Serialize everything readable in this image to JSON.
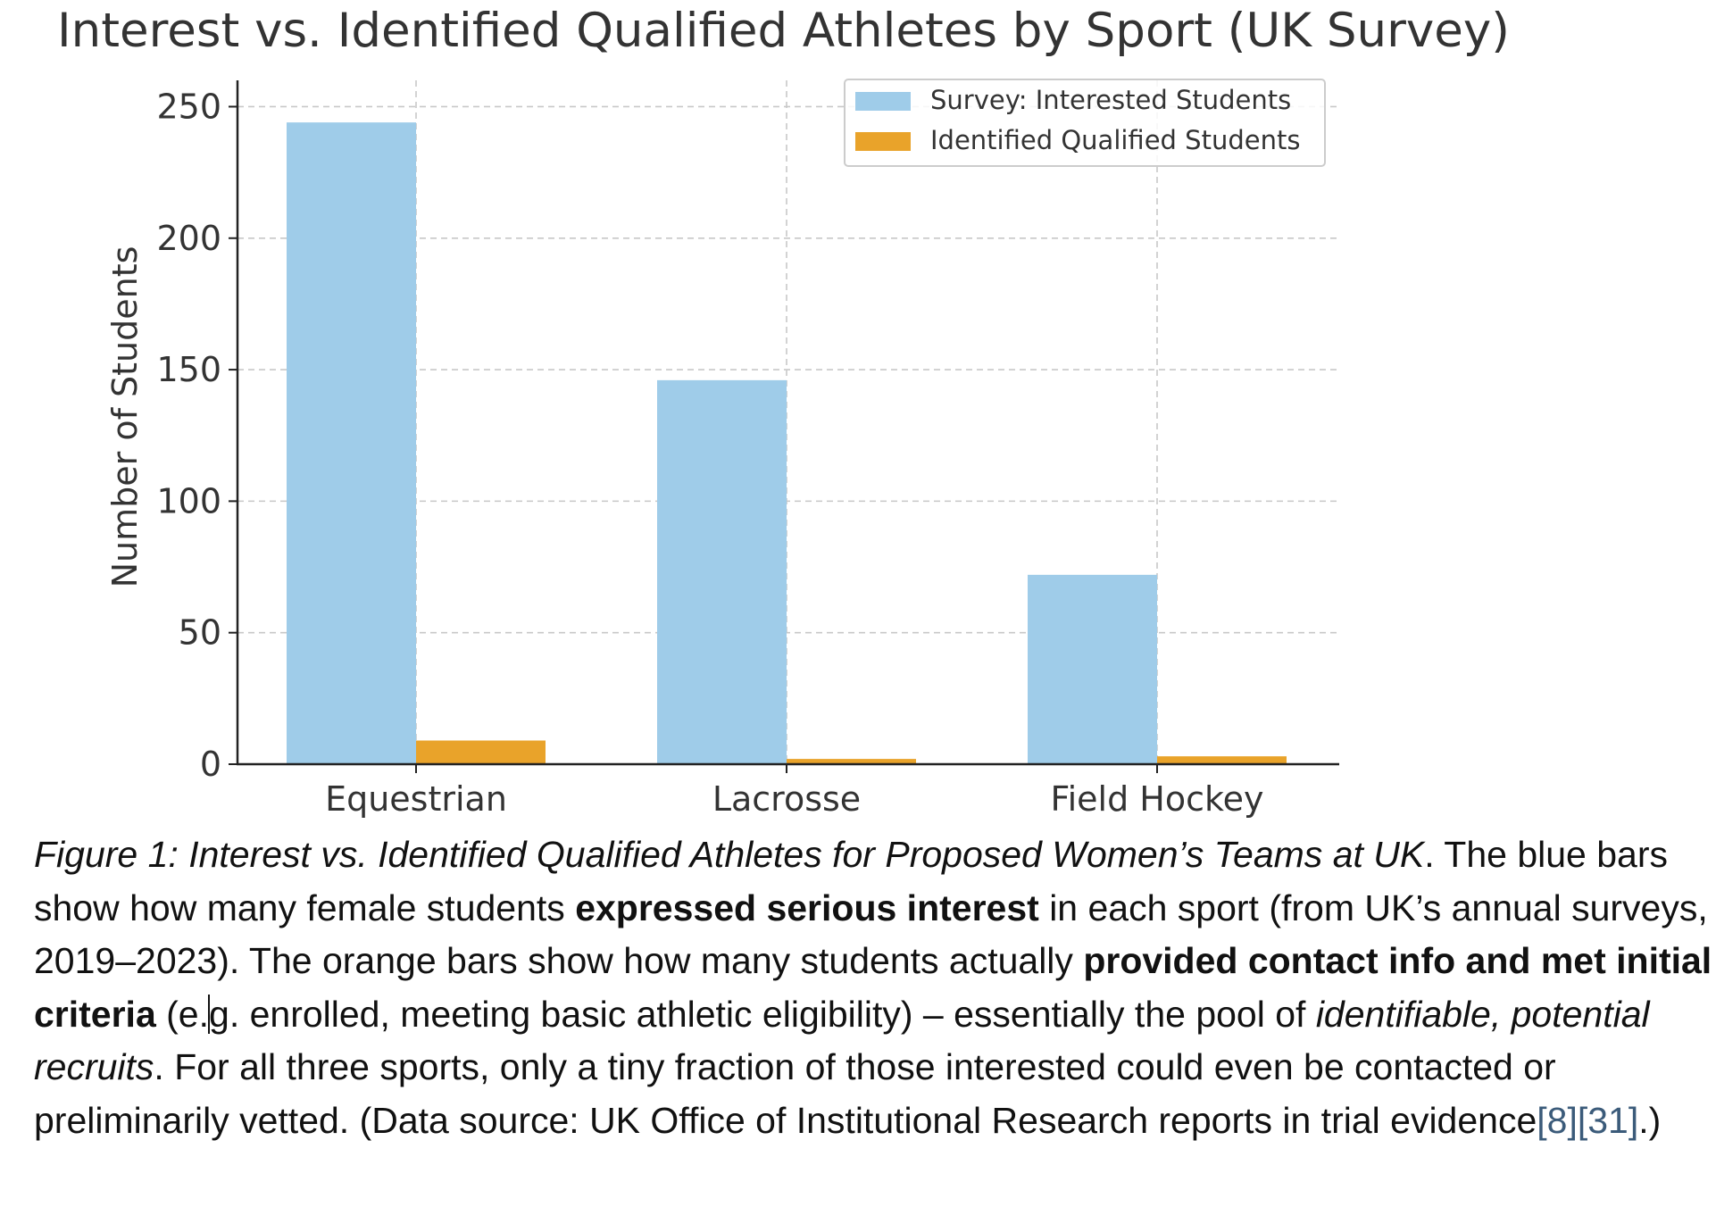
{
  "chart_data": {
    "type": "bar",
    "title": "Interest vs. Identified Qualified Athletes by Sport (UK Survey)",
    "xlabel": "",
    "ylabel": "Number of Students",
    "categories": [
      "Equestrian",
      "Lacrosse",
      "Field Hockey"
    ],
    "series": [
      {
        "name": "Survey: Interested Students",
        "values": [
          244,
          146,
          72
        ],
        "color": "#9fcce9"
      },
      {
        "name": "Identified Qualified Students",
        "values": [
          9,
          2,
          3
        ],
        "color": "#e9a32a"
      }
    ],
    "ylim": [
      0,
      260
    ],
    "yticks": [
      0,
      50,
      100,
      150,
      200,
      250
    ],
    "ytick_labels": [
      "0",
      "50",
      "100",
      "150",
      "200",
      "250"
    ],
    "grid": true,
    "legend_position": "top-right"
  },
  "caption": {
    "fig_label": "Figure 1: Interest vs. Identified Qualified Athletes for Proposed Women’s Teams at UK",
    "t1": ". The blue bars show how many female students ",
    "b1": "expressed serious interest",
    "t2": " in each sport (from UK’s annual surveys, 2019–2023). The orange bars show how many students actually ",
    "b2": "provided contact info and met initial criteria",
    "t3a": " (e.",
    "t3b": "g. enrolled, meeting basic athletic eligibility) – essentially the pool of ",
    "i2": "identifiable, potential recruits",
    "t4": ". For all three sports, only a tiny fraction of those interested could even be contacted or preliminarily vetted. (Data source: UK Office of Institutional Research reports in trial evidence",
    "ref1": "[8]",
    "ref2": "[31]",
    "t5": ".)"
  }
}
